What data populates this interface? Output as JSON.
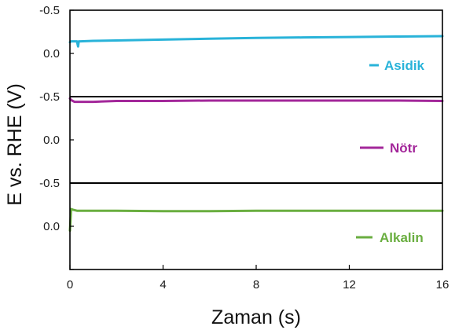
{
  "chart_data": {
    "type": "line",
    "layout": "stacked-panels",
    "xlabel": "Zaman (s)",
    "ylabel": "E vs. RHE (V)",
    "xlim": [
      0,
      16
    ],
    "x_ticks": [
      0,
      4,
      8,
      12,
      16
    ],
    "grid": false,
    "legend_placement": "right side of each panel",
    "panels": [
      {
        "name": "Asidik",
        "color": "#29b3d9",
        "ylim": [
          0.5,
          -0.5
        ],
        "y_tick_values": [
          -0.5,
          0.0,
          0.5
        ],
        "y_tick_labels": [
          "-0.5",
          "0.0",
          ""
        ],
        "x": [
          0,
          0.05,
          0.25,
          0.3,
          0.35,
          0.38,
          0.4,
          0.45,
          1,
          2,
          4,
          6,
          8,
          10,
          12,
          14,
          16
        ],
        "y": [
          -0.13,
          -0.14,
          -0.14,
          -0.14,
          -0.08,
          -0.14,
          -0.14,
          -0.14,
          -0.145,
          -0.15,
          -0.16,
          -0.17,
          -0.18,
          -0.185,
          -0.19,
          -0.195,
          -0.2
        ]
      },
      {
        "name": "Nötr",
        "color": "#a3279a",
        "ylim": [
          0.5,
          -0.5
        ],
        "y_tick_values": [
          -0.5,
          0.0,
          0.5
        ],
        "y_tick_labels": [
          "-0.5",
          "0.0",
          ""
        ],
        "x": [
          0,
          0.05,
          0.2,
          0.5,
          1,
          2,
          4,
          6,
          8,
          10,
          12,
          14,
          16
        ],
        "y": [
          -0.48,
          -0.46,
          -0.44,
          -0.44,
          -0.44,
          -0.45,
          -0.45,
          -0.455,
          -0.455,
          -0.455,
          -0.455,
          -0.455,
          -0.45
        ]
      },
      {
        "name": "Alkalin",
        "color": "#6aae40",
        "ylim": [
          0.5,
          -0.5
        ],
        "y_tick_values": [
          -0.5,
          0.0,
          0.5
        ],
        "y_tick_labels": [
          "-0.5",
          "0.0",
          ""
        ],
        "x": [
          0,
          0.05,
          0.15,
          0.3,
          1,
          2,
          4,
          6,
          8,
          10,
          12,
          14,
          16
        ],
        "y": [
          0.05,
          -0.2,
          -0.19,
          -0.18,
          -0.18,
          -0.18,
          -0.175,
          -0.175,
          -0.18,
          -0.18,
          -0.18,
          -0.18,
          -0.18
        ]
      }
    ]
  }
}
